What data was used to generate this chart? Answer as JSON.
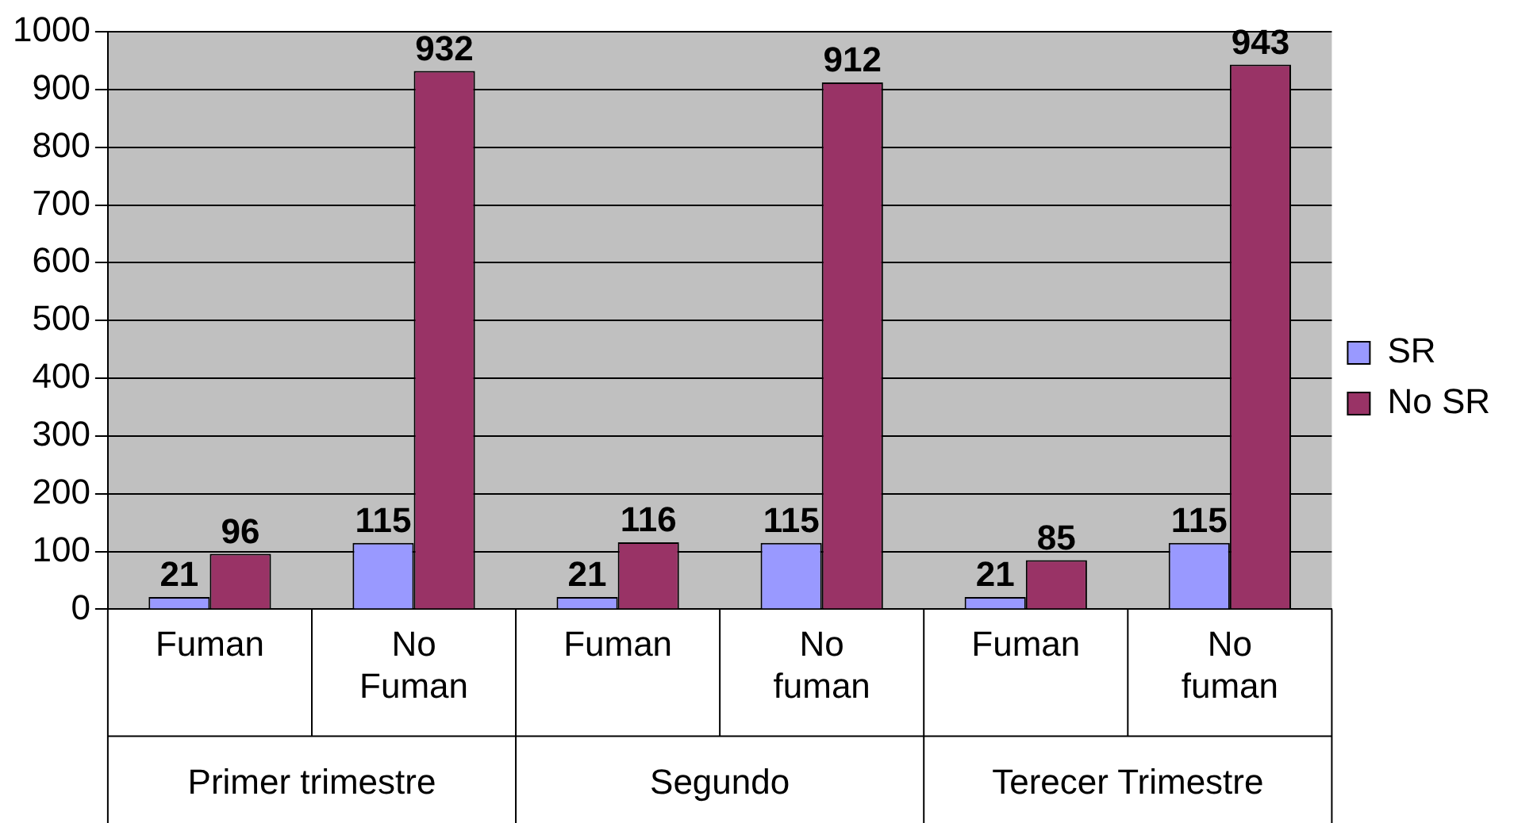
{
  "chart_data": {
    "type": "bar",
    "categories": [
      "Fuman",
      "No Fuman",
      "Fuman",
      "No fuman",
      "Fuman",
      "No fuman"
    ],
    "series": [
      {
        "name": "SR",
        "color": "#9999ff",
        "values": [
          21,
          115,
          21,
          115,
          21,
          115
        ]
      },
      {
        "name": "No SR",
        "color": "#993366",
        "values": [
          96,
          932,
          116,
          912,
          85,
          943
        ]
      }
    ],
    "annotations": [
      "Primer trimestre",
      "Segundo",
      "Terecer Trimestre"
    ],
    "ylim": [
      0,
      1000
    ],
    "yticks": [
      0,
      100,
      200,
      300,
      400,
      500,
      600,
      700,
      800,
      900,
      1000
    ],
    "grid": "y",
    "legend": "right",
    "data_labels": true
  }
}
